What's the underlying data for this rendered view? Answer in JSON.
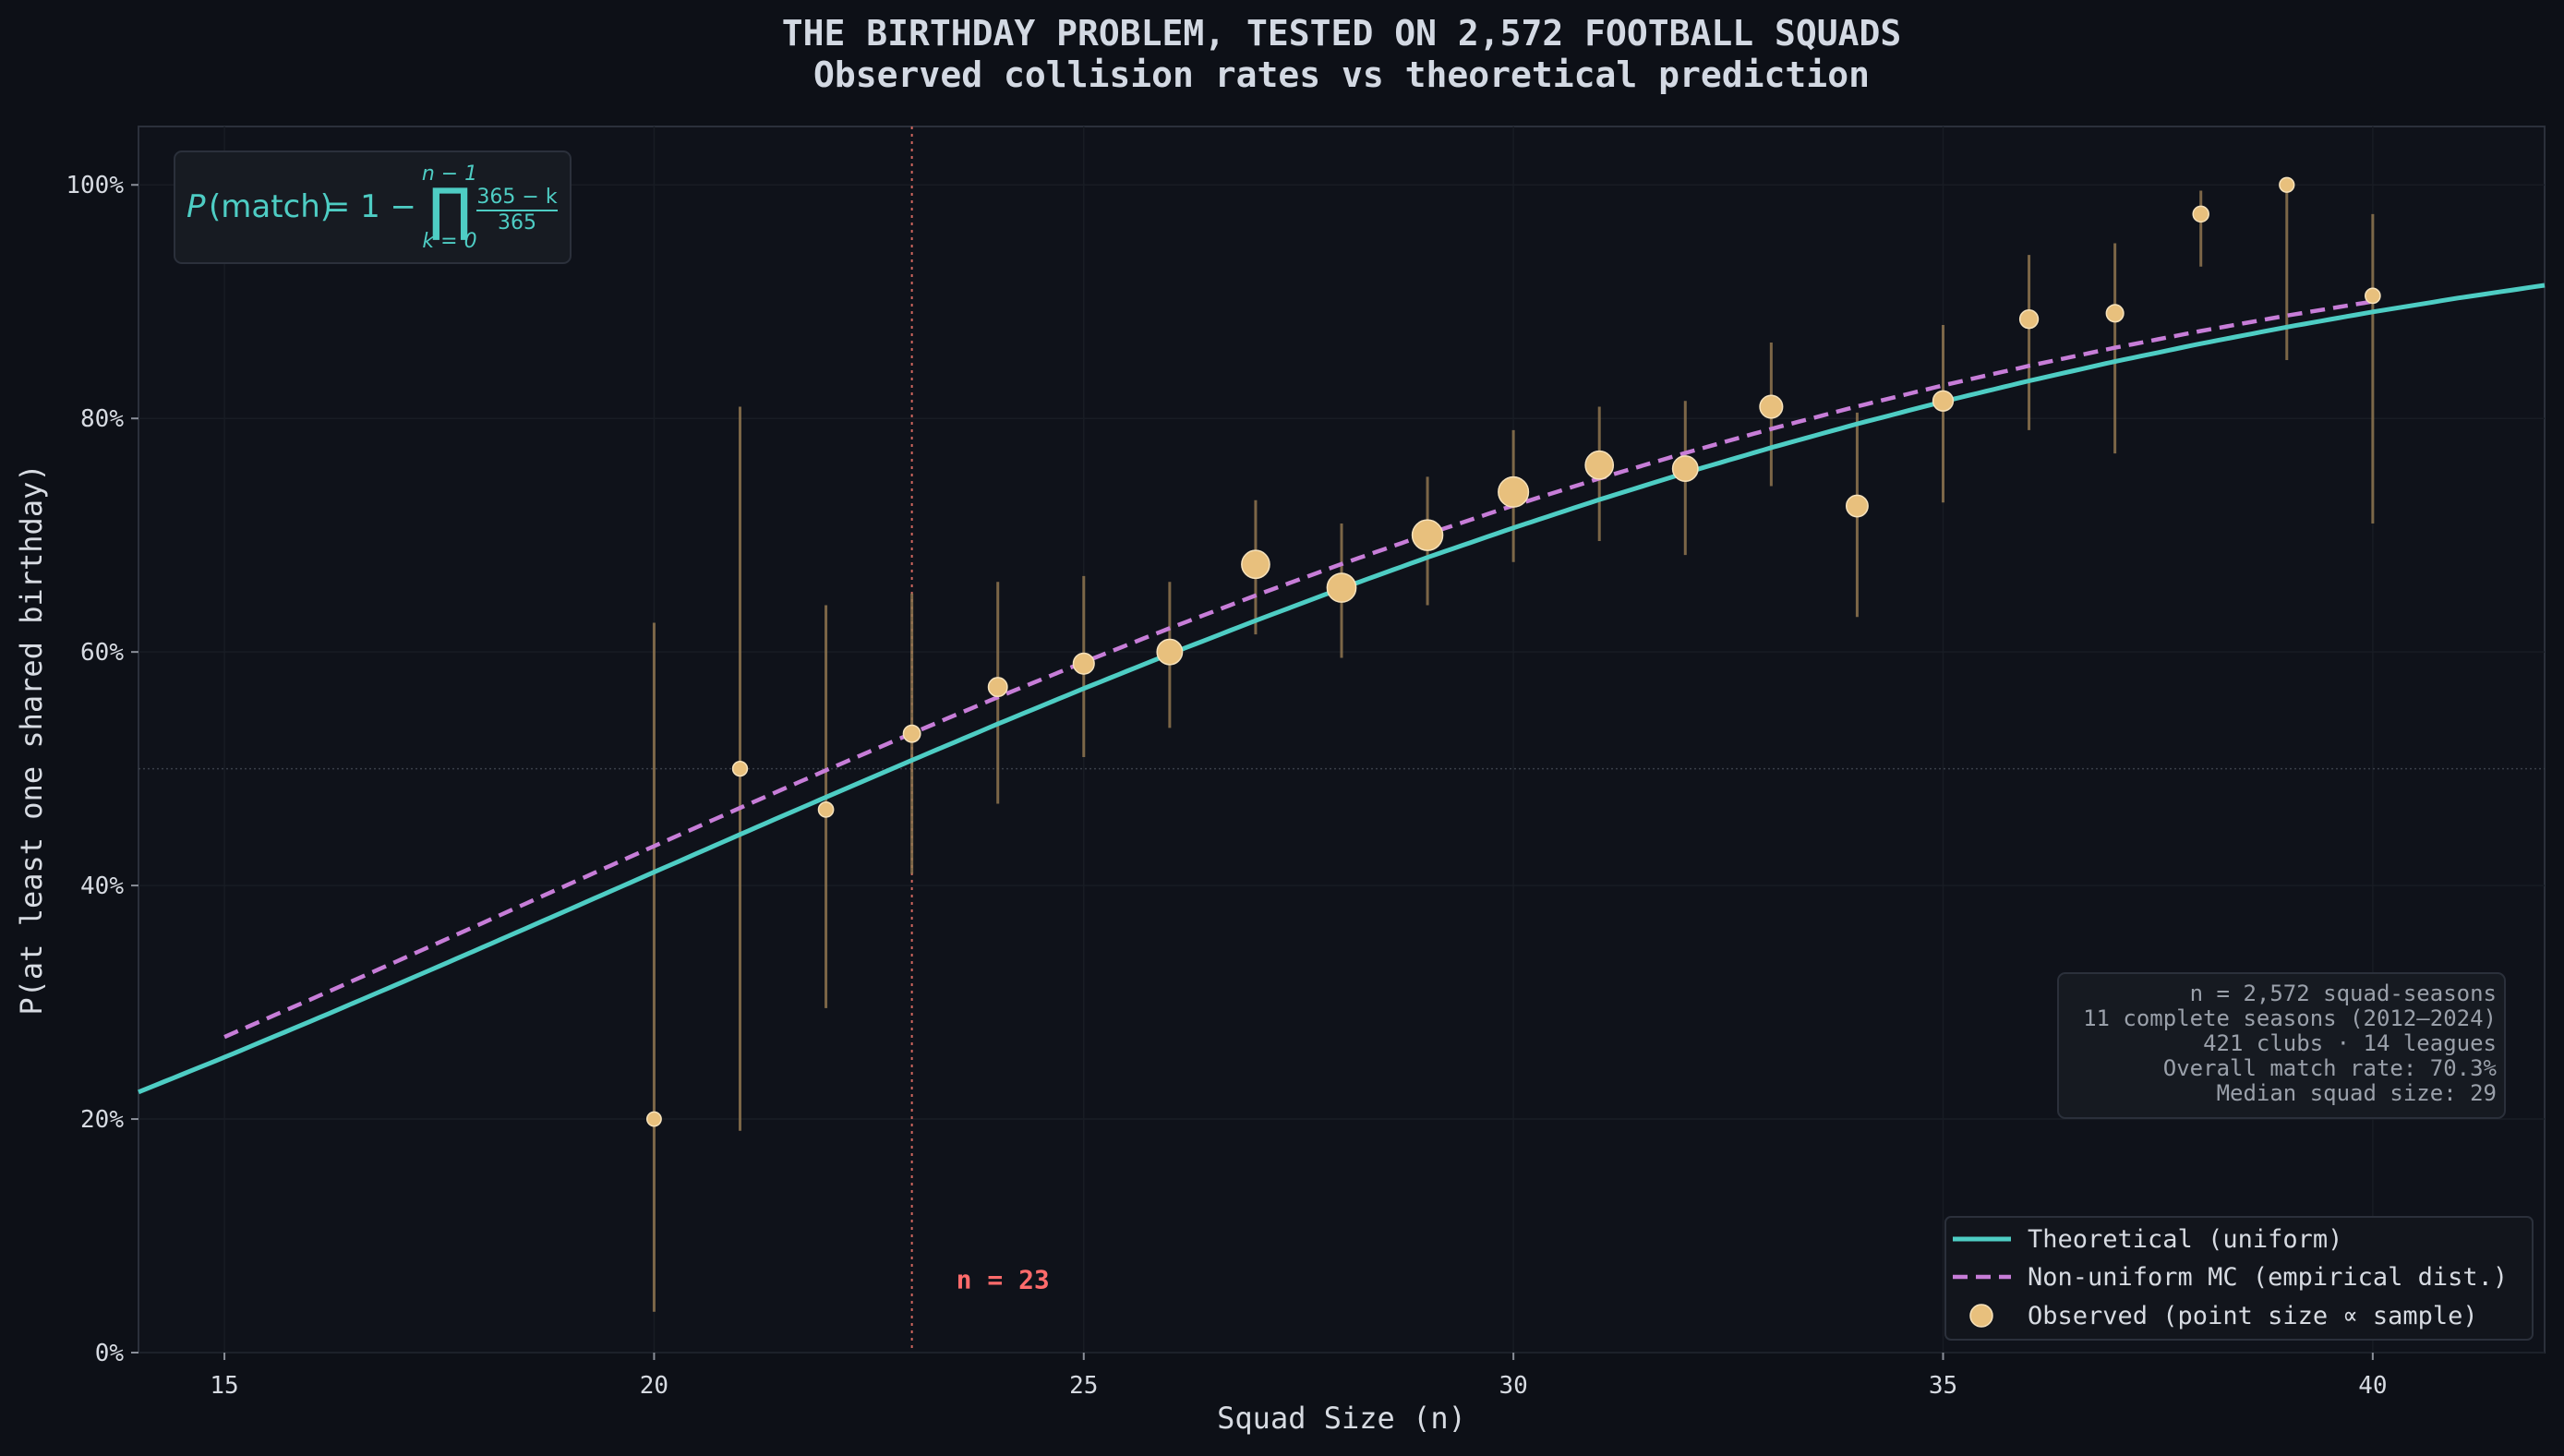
{
  "chart_data": {
    "type": "scatter",
    "title": "THE BIRTHDAY PROBLEM, TESTED ON 2,572 FOOTBALL SQUADS",
    "subtitle": "Observed collision rates vs theoretical prediction",
    "xlabel": "Squad Size (n)",
    "ylabel": "P(at least one shared birthday)",
    "xlim": [
      14,
      42
    ],
    "ylim": [
      0,
      1.05
    ],
    "x_ticks": [
      15,
      20,
      25,
      30,
      35,
      40
    ],
    "y_ticks": [
      0,
      0.2,
      0.4,
      0.6,
      0.8,
      1.0
    ],
    "y_tick_labels": [
      "0%",
      "20%",
      "40%",
      "60%",
      "80%",
      "100%"
    ],
    "reference_line": {
      "x": 23,
      "label": "n = 23"
    },
    "half_line": 0.5,
    "formula": {
      "lhs_var": "P",
      "lhs_arg": "(match)",
      "eq": " = 1 − ",
      "upper": "n − 1",
      "lower": "k = 0",
      "num": "365 − k",
      "den": "365"
    },
    "stats": [
      "n = 2,572 squad-seasons",
      "11 complete seasons (2012–2024)",
      "421 clubs · 14 leagues",
      "Overall match rate: 70.3%",
      "Median squad size: 29"
    ],
    "series": [
      {
        "name": "Theoretical (uniform)",
        "kind": "line",
        "color": "#4ecdc4",
        "x_range": [
          14,
          42
        ]
      },
      {
        "name": "Non-uniform MC (empirical dist.)",
        "kind": "dashed",
        "color": "#c77dd8",
        "x_range": [
          15,
          40
        ],
        "boost_at_n23": 0.023
      },
      {
        "name": "Observed (point size ∝ sample)",
        "kind": "points",
        "color": "#e8c07d",
        "x": [
          20,
          21,
          22,
          23,
          24,
          25,
          26,
          27,
          28,
          29,
          30,
          31,
          32,
          33,
          34,
          35,
          36,
          37,
          38,
          39,
          40
        ],
        "y": [
          0.2,
          0.5,
          0.465,
          0.53,
          0.57,
          0.59,
          0.6,
          0.675,
          0.655,
          0.7,
          0.737,
          0.76,
          0.757,
          0.81,
          0.725,
          0.815,
          0.885,
          0.89,
          0.975,
          1.0,
          0.905
        ],
        "lower": [
          0.035,
          0.19,
          0.295,
          0.41,
          0.47,
          0.51,
          0.535,
          0.615,
          0.595,
          0.64,
          0.677,
          0.695,
          0.683,
          0.742,
          0.63,
          0.728,
          0.79,
          0.77,
          0.93,
          0.85,
          0.71
        ],
        "upper": [
          0.625,
          0.81,
          0.64,
          0.65,
          0.66,
          0.665,
          0.66,
          0.73,
          0.71,
          0.75,
          0.79,
          0.81,
          0.815,
          0.865,
          0.805,
          0.88,
          0.94,
          0.95,
          0.995,
          1.0,
          0.975
        ],
        "sample": [
          5,
          6,
          7,
          14,
          23,
          35,
          70,
          95,
          106,
          125,
          120,
          95,
          70,
          48,
          40,
          30,
          20,
          15,
          9,
          6,
          7
        ]
      }
    ],
    "legend_position": "lower-right"
  }
}
